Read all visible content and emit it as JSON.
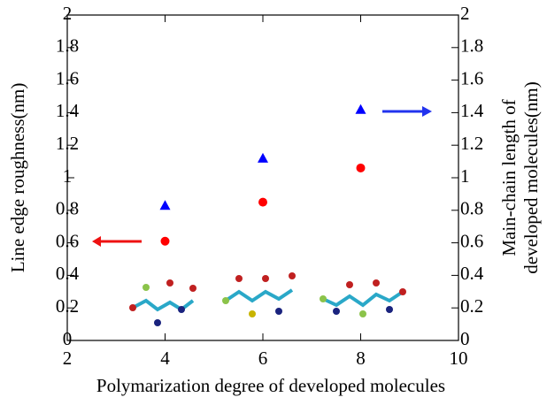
{
  "chart_data": {
    "type": "scatter",
    "xlabel": "Polymarization degree of developed molecules",
    "ylabel": "Line edge roughness(nm)",
    "y2label": [
      "Main-chain length of",
      "developed molecules(nm)"
    ],
    "xlim": [
      2,
      10
    ],
    "xticks": [
      2,
      4,
      6,
      8,
      10
    ],
    "ylim": [
      0,
      2
    ],
    "yticks": [
      0,
      0.2,
      0.4,
      0.6,
      0.8,
      1,
      1.2,
      1.4,
      1.6,
      1.8,
      2
    ],
    "y2lim": [
      0,
      2
    ],
    "y2ticks": [
      0,
      0.2,
      0.4,
      0.6,
      0.8,
      1,
      1.2,
      1.4,
      1.6,
      1.8,
      2
    ],
    "series": [
      {
        "color": "#ff0000",
        "marker": "circle",
        "x": [
          4,
          6,
          8
        ],
        "values": [
          0.61,
          0.85,
          1.06
        ]
      },
      {
        "color": "#0000ff",
        "marker": "triangle",
        "axis": "y2",
        "x": [
          4,
          6,
          8
        ],
        "values": [
          0.83,
          1.12,
          1.42
        ]
      }
    ]
  }
}
